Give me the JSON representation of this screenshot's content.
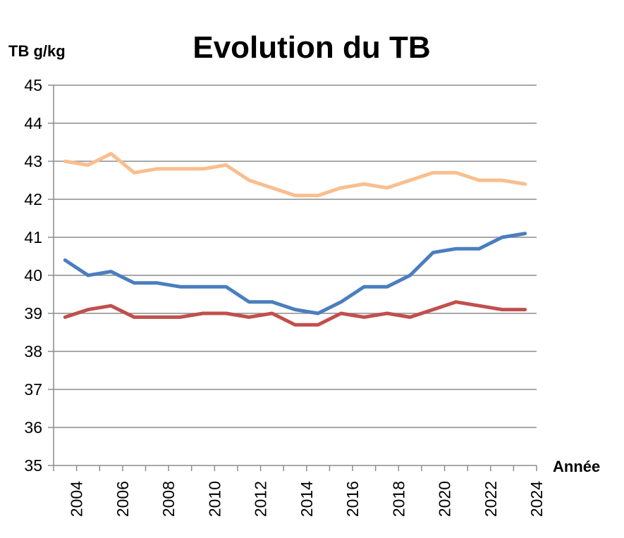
{
  "chart_data": {
    "type": "line",
    "title": "Evolution du TB",
    "ylabel": "TB g/kg",
    "xlabel": "Année",
    "ylim": [
      35,
      45
    ],
    "xlim": [
      2003,
      2024
    ],
    "yticks": [
      "35",
      "36",
      "37",
      "38",
      "39",
      "40",
      "41",
      "42",
      "43",
      "44",
      "45"
    ],
    "xticks": [
      "2004",
      "2006",
      "2008",
      "2010",
      "2012",
      "2014",
      "2016",
      "2018",
      "2020",
      "2022",
      "2024"
    ],
    "grid": true,
    "x": [
      2003.5,
      2004.5,
      2005.5,
      2006.5,
      2007.5,
      2008.5,
      2009.5,
      2010.5,
      2011.5,
      2012.5,
      2013.5,
      2014.5,
      2015.5,
      2016.5,
      2017.5,
      2018.5,
      2019.5,
      2020.5,
      2021.5,
      2022.5,
      2023.5
    ],
    "series": [
      {
        "color": "#f9be8f",
        "values": [
          43.0,
          42.9,
          43.2,
          42.7,
          42.8,
          42.8,
          42.8,
          42.9,
          42.5,
          42.3,
          42.1,
          42.1,
          42.3,
          42.4,
          42.3,
          42.5,
          42.7,
          42.7,
          42.5,
          42.5,
          42.4
        ]
      },
      {
        "color": "#4a7ebf",
        "values": [
          40.4,
          40.0,
          40.1,
          39.8,
          39.8,
          39.7,
          39.7,
          39.7,
          39.3,
          39.3,
          39.1,
          39.0,
          39.3,
          39.7,
          39.7,
          40.0,
          40.6,
          40.7,
          40.7,
          41.0,
          41.1
        ]
      },
      {
        "color": "#c0504d",
        "values": [
          38.9,
          39.1,
          39.2,
          38.9,
          38.9,
          38.9,
          39.0,
          39.0,
          38.9,
          39.0,
          38.7,
          38.7,
          39.0,
          38.9,
          39.0,
          38.9,
          39.1,
          39.3,
          39.2,
          39.1,
          39.1
        ]
      }
    ]
  }
}
